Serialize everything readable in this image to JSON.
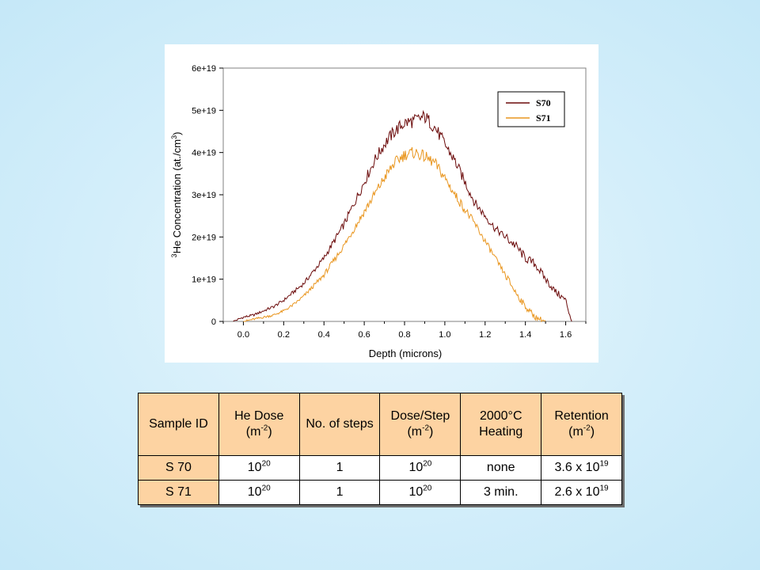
{
  "chart_data": {
    "type": "line",
    "xlabel": "Depth (microns)",
    "ylabel_superscript": "3",
    "ylabel": "He Concentration (at./cm",
    "ylabel_unit_superscript": "3",
    "ylabel_close": ")",
    "xlim": [
      -0.1,
      1.7
    ],
    "ylim": [
      0,
      6e+19
    ],
    "xticks": [
      "0.0",
      "0.2",
      "0.4",
      "0.6",
      "0.8",
      "1.0",
      "1.2",
      "1.4",
      "1.6"
    ],
    "yticks": [
      "0",
      "1e+19",
      "2e+19",
      "3e+19",
      "4e+19",
      "5e+19",
      "6e+19"
    ],
    "legend_position": "top-right",
    "series": [
      {
        "name": "S70",
        "color": "#6b0a0a",
        "x": [
          -0.05,
          0.0,
          0.05,
          0.1,
          0.15,
          0.2,
          0.25,
          0.3,
          0.35,
          0.4,
          0.45,
          0.5,
          0.55,
          0.6,
          0.65,
          0.7,
          0.75,
          0.8,
          0.85,
          0.9,
          0.95,
          1.0,
          1.05,
          1.1,
          1.15,
          1.2,
          1.25,
          1.3,
          1.35,
          1.4,
          1.45,
          1.5,
          1.55,
          1.6,
          1.63
        ],
        "y": [
          0.0,
          1e+18,
          1.5e+18,
          2.5e+18,
          3.5e+18,
          5e+18,
          7e+18,
          9e+18,
          1.2e+19,
          1.5e+19,
          1.9e+19,
          2.3e+19,
          2.8e+19,
          3.3e+19,
          3.8e+19,
          4.2e+19,
          4.5e+19,
          4.7e+19,
          4.75e+19,
          4.85e+19,
          4.6e+19,
          4.2e+19,
          3.8e+19,
          3.3e+19,
          2.8e+19,
          2.5e+19,
          2.2e+19,
          2e+19,
          1.8e+19,
          1.5e+19,
          1.35e+19,
          1e+19,
          7e+18,
          5e+18,
          0.0
        ]
      },
      {
        "name": "S71",
        "color": "#e9961f",
        "x": [
          0.0,
          0.05,
          0.1,
          0.15,
          0.2,
          0.25,
          0.3,
          0.35,
          0.4,
          0.45,
          0.5,
          0.55,
          0.6,
          0.65,
          0.7,
          0.75,
          0.8,
          0.85,
          0.9,
          0.95,
          1.0,
          1.05,
          1.1,
          1.15,
          1.2,
          1.25,
          1.3,
          1.35,
          1.4,
          1.45,
          1.5
        ],
        "y": [
          0.0,
          5e+17,
          1e+18,
          1.5e+18,
          2.5e+18,
          4e+18,
          6e+18,
          8.5e+18,
          1.1e+19,
          1.45e+19,
          1.8e+19,
          2.2e+19,
          2.6e+19,
          3e+19,
          3.4e+19,
          3.75e+19,
          3.95e+19,
          4e+19,
          3.9e+19,
          3.75e+19,
          3.4e+19,
          3e+19,
          2.65e+19,
          2.3e+19,
          1.9e+19,
          1.5e+19,
          1.1e+19,
          7e+18,
          3.5e+18,
          1e+18,
          0.0
        ]
      }
    ]
  },
  "table": {
    "headers": [
      {
        "text": "Sample ID",
        "unit": ""
      },
      {
        "text": "He Dose",
        "unit": "(m",
        "unit_sup": "-2",
        "unit_close": ")"
      },
      {
        "text": "No. of steps",
        "unit": ""
      },
      {
        "text": "Dose/Step",
        "unit": "(m",
        "unit_sup": "-2",
        "unit_close": ")"
      },
      {
        "text": "2000°C Heating",
        "unit": ""
      },
      {
        "text": "Retention",
        "unit": "(m",
        "unit_sup": "-2",
        "unit_close": ")"
      }
    ],
    "rows": [
      {
        "id": "S 70",
        "dose_base": "10",
        "dose_exp": "20",
        "steps": "1",
        "step_base": "10",
        "step_exp": "20",
        "heating": "none",
        "ret_base": "3.6 x 10",
        "ret_exp": "19"
      },
      {
        "id": "S 71",
        "dose_base": "10",
        "dose_exp": "20",
        "steps": "1",
        "step_base": "10",
        "step_exp": "20",
        "heating": "3 min.",
        "ret_base": "2.6 x 10",
        "ret_exp": "19"
      }
    ]
  }
}
